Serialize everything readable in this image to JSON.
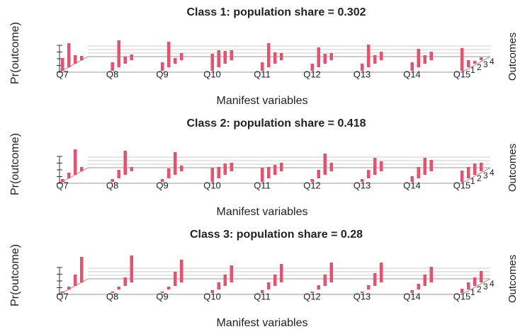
{
  "chart_data": [
    {
      "type": "bar3d",
      "title": "Class 1: population share = 0.302",
      "x_label": "Manifest variables",
      "y_label": "Pr(outcome)",
      "z_label": "Outcomes",
      "categories": [
        "Q7",
        "Q8",
        "Q9",
        "Q10",
        "Q11",
        "Q12",
        "Q13",
        "Q14",
        "Q15"
      ],
      "ylim": [
        0,
        1
      ],
      "color": "#e8506e",
      "series": [
        {
          "name": "1",
          "values": [
            0.45,
            0.3,
            0.3,
            0.6,
            0.3,
            0.25,
            0.25,
            0.3,
            0.8
          ]
        },
        {
          "name": "2",
          "values": [
            0.85,
            0.95,
            0.9,
            0.6,
            0.85,
            0.7,
            0.8,
            0.65,
            0.25
          ]
        },
        {
          "name": "3",
          "values": [
            0.3,
            0.25,
            0.2,
            0.45,
            0.4,
            0.35,
            0.3,
            0.3,
            0.1
          ]
        },
        {
          "name": "4",
          "values": [
            0.15,
            0.2,
            0.25,
            0.35,
            0.25,
            0.25,
            0.3,
            0.3,
            0.1
          ]
        }
      ]
    },
    {
      "type": "bar3d",
      "title": "Class 2: population share = 0.418",
      "x_label": "Manifest variables",
      "y_label": "Pr(outcome)",
      "z_label": "Outcomes",
      "categories": [
        "Q7",
        "Q8",
        "Q9",
        "Q10",
        "Q11",
        "Q12",
        "Q13",
        "Q14",
        "Q15"
      ],
      "ylim": [
        0,
        1
      ],
      "color": "#e8506e",
      "series": [
        {
          "name": "1",
          "values": [
            0.1,
            0.1,
            0.1,
            0.5,
            0.5,
            0.1,
            0.1,
            0.2,
            0.4
          ]
        },
        {
          "name": "2",
          "values": [
            0.2,
            0.3,
            0.35,
            0.4,
            0.4,
            0.3,
            0.3,
            0.4,
            0.4
          ]
        },
        {
          "name": "3",
          "values": [
            0.9,
            0.85,
            0.8,
            0.4,
            0.35,
            0.75,
            0.6,
            0.6,
            0.4
          ]
        },
        {
          "name": "4",
          "values": [
            0.15,
            0.15,
            0.2,
            0.3,
            0.3,
            0.3,
            0.35,
            0.4,
            0.3
          ]
        }
      ]
    },
    {
      "type": "bar3d",
      "title": "Class 3: population share = 0.28",
      "x_label": "Manifest variables",
      "y_label": "Pr(outcome)",
      "z_label": "Outcomes",
      "categories": [
        "Q7",
        "Q8",
        "Q9",
        "Q10",
        "Q11",
        "Q12",
        "Q13",
        "Q14",
        "Q15"
      ],
      "ylim": [
        0,
        1
      ],
      "color": "#e8506e",
      "series": [
        {
          "name": "1",
          "values": [
            0.05,
            0.05,
            0.05,
            0.1,
            0.1,
            0.05,
            0.05,
            0.1,
            0.15
          ]
        },
        {
          "name": "2",
          "values": [
            0.1,
            0.1,
            0.1,
            0.25,
            0.25,
            0.15,
            0.15,
            0.2,
            0.25
          ]
        },
        {
          "name": "3",
          "values": [
            0.4,
            0.3,
            0.5,
            0.4,
            0.4,
            0.4,
            0.45,
            0.4,
            0.3
          ]
        },
        {
          "name": "4",
          "values": [
            0.9,
            0.95,
            0.8,
            0.6,
            0.65,
            0.7,
            0.7,
            0.55,
            0.4
          ]
        }
      ]
    }
  ]
}
